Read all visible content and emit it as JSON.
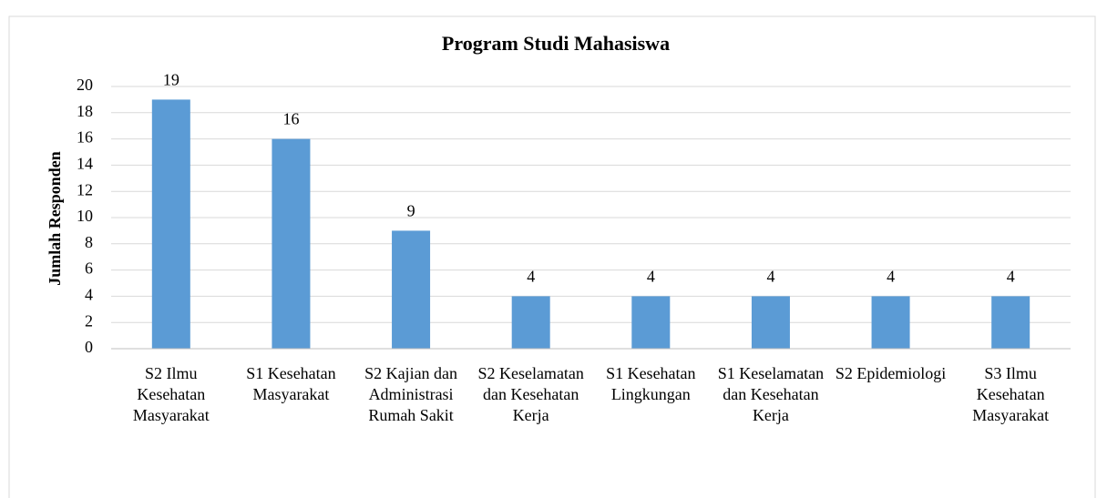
{
  "chart_data": {
    "type": "bar",
    "title": "Program Studi Mahasiswa",
    "y_label": "Jumlah Responden",
    "categories": [
      "S2 Ilmu Kesehatan Masyarakat",
      "S1 Kesehatan Masyarakat",
      "S2 Kajian dan Administrasi Rumah Sakit",
      "S2 Keselamatan dan Kesehatan Kerja",
      "S1 Kesehatan Lingkungan",
      "S1 Keselamatan dan Kesehatan Kerja",
      "S2 Epidemiologi",
      "S3 Ilmu Kesehatan Masyarakat"
    ],
    "values": [
      19,
      16,
      9,
      4,
      4,
      4,
      4,
      4
    ],
    "color": "#5b9bd5",
    "ylim": [
      0,
      20
    ],
    "yticks": [
      0,
      2,
      4,
      6,
      8,
      10,
      12,
      14,
      16,
      18,
      20
    ],
    "grid": true
  }
}
